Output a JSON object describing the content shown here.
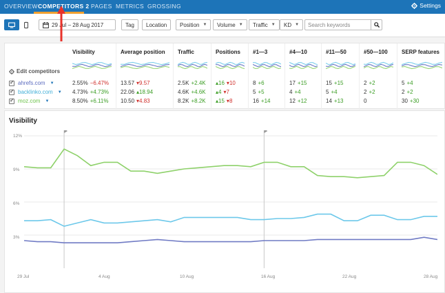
{
  "nav": {
    "tabs": [
      "OVERVIEW",
      "COMPETITORS 2",
      "PAGES",
      "METRICS",
      "GROSSING"
    ],
    "active_index": 1,
    "settings_label": "Settings"
  },
  "toolbar": {
    "date_range": "29 Jul – 28 Aug 2017",
    "tag_label": "Tag",
    "location_label": "Location",
    "filters": [
      "Position",
      "Volume",
      "Traffic",
      "KD"
    ],
    "search_placeholder": "Search keywords"
  },
  "competitors": {
    "edit_label": "Edit competitors",
    "items": [
      {
        "name": "ahrefs.com",
        "color": "#5b6bbf"
      },
      {
        "name": "backlinko.com",
        "color": "#44b0d8"
      },
      {
        "name": "moz.com",
        "color": "#6cc24a"
      }
    ]
  },
  "columns": [
    {
      "header": "Visibility",
      "rows": [
        {
          "value": "2.55%",
          "change": "−6.47%",
          "dir": "neg"
        },
        {
          "value": "4.73%",
          "change": "+4.73%",
          "dir": "pos"
        },
        {
          "value": "8.50%",
          "change": "+6.11%",
          "dir": "pos"
        }
      ]
    },
    {
      "header": "Average position",
      "rows": [
        {
          "value": "13.57",
          "change": "▾9.57",
          "dir": "neg"
        },
        {
          "value": "22.06",
          "change": "▴18.94",
          "dir": "pos"
        },
        {
          "value": "10.50",
          "change": "▾4.83",
          "dir": "neg"
        }
      ]
    },
    {
      "header": "Traffic",
      "rows": [
        {
          "value": "2.5K",
          "change": "+2.4K",
          "dir": "pos"
        },
        {
          "value": "4.6K",
          "change": "+4.6K",
          "dir": "pos"
        },
        {
          "value": "8.2K",
          "change": "+8.2K",
          "dir": "pos"
        }
      ]
    },
    {
      "header": "Positions",
      "rows": [
        {
          "value": "▴16",
          "change": "▾10",
          "dir": "neg"
        },
        {
          "value": "▴4",
          "change": "▾7",
          "dir": "neg"
        },
        {
          "value": "▴15",
          "change": "▾8",
          "dir": "neg"
        }
      ]
    },
    {
      "header": "#1—3",
      "rows": [
        {
          "value": "8",
          "change": "+6",
          "dir": "pos"
        },
        {
          "value": "5",
          "change": "+5",
          "dir": "pos"
        },
        {
          "value": "16",
          "change": "+14",
          "dir": "pos"
        }
      ]
    },
    {
      "header": "#4—10",
      "rows": [
        {
          "value": "17",
          "change": "+15",
          "dir": "pos"
        },
        {
          "value": "4",
          "change": "+4",
          "dir": "pos"
        },
        {
          "value": "12",
          "change": "+12",
          "dir": "pos"
        }
      ]
    },
    {
      "header": "#11—50",
      "rows": [
        {
          "value": "15",
          "change": "+15",
          "dir": "pos"
        },
        {
          "value": "5",
          "change": "+4",
          "dir": "pos"
        },
        {
          "value": "14",
          "change": "+13",
          "dir": "pos"
        }
      ]
    },
    {
      "header": "#50—100",
      "rows": [
        {
          "value": "2",
          "change": "+2",
          "dir": "pos"
        },
        {
          "value": "2",
          "change": "+2",
          "dir": "pos"
        },
        {
          "value": "0",
          "change": "",
          "dir": "pos"
        }
      ]
    },
    {
      "header": "SERP features",
      "rows": [
        {
          "value": "5",
          "change": "+4",
          "dir": "pos"
        },
        {
          "value": "2",
          "change": "+2",
          "dir": "pos"
        },
        {
          "value": "30",
          "change": "+30",
          "dir": "pos"
        }
      ]
    }
  ],
  "chart_data": {
    "type": "line",
    "title": "Visibility",
    "ylim": [
      0,
      12
    ],
    "y_ticks": [
      "12%",
      "9%",
      "6%",
      "3%"
    ],
    "x_ticks": [
      "29 Jul",
      "4 Aug",
      "10 Aug",
      "16 Aug",
      "22 Aug",
      "28 Aug"
    ],
    "grid": true,
    "series": [
      {
        "name": "moz.com",
        "color": "#8ed16a",
        "values": [
          9.2,
          9.1,
          9.1,
          10.8,
          10.2,
          9.3,
          9.6,
          9.6,
          8.8,
          8.8,
          8.6,
          8.8,
          9.0,
          9.1,
          9.2,
          9.3,
          9.3,
          9.2,
          9.6,
          9.6,
          9.2,
          9.2,
          8.4,
          8.3,
          8.3,
          8.2,
          8.3,
          8.4,
          9.6,
          9.6,
          9.3,
          8.5
        ]
      },
      {
        "name": "backlinko.com",
        "color": "#6cc8ea",
        "values": [
          4.3,
          4.3,
          4.4,
          3.8,
          4.1,
          4.4,
          4.1,
          4.1,
          4.2,
          4.3,
          4.4,
          4.2,
          4.6,
          4.6,
          4.6,
          4.6,
          4.6,
          4.4,
          4.4,
          4.5,
          4.5,
          4.6,
          4.9,
          4.9,
          4.3,
          4.3,
          4.8,
          4.8,
          4.4,
          4.4,
          4.7,
          4.7
        ]
      },
      {
        "name": "ahrefs.com",
        "color": "#6f7ac4",
        "values": [
          2.5,
          2.4,
          2.4,
          2.3,
          2.3,
          2.3,
          2.3,
          2.3,
          2.4,
          2.5,
          2.6,
          2.5,
          2.4,
          2.4,
          2.4,
          2.4,
          2.4,
          2.4,
          2.5,
          2.5,
          2.5,
          2.5,
          2.6,
          2.6,
          2.6,
          2.6,
          2.6,
          2.6,
          2.6,
          2.6,
          2.8,
          2.6
        ]
      }
    ],
    "annotation_markers_at_index": [
      3,
      18
    ]
  }
}
